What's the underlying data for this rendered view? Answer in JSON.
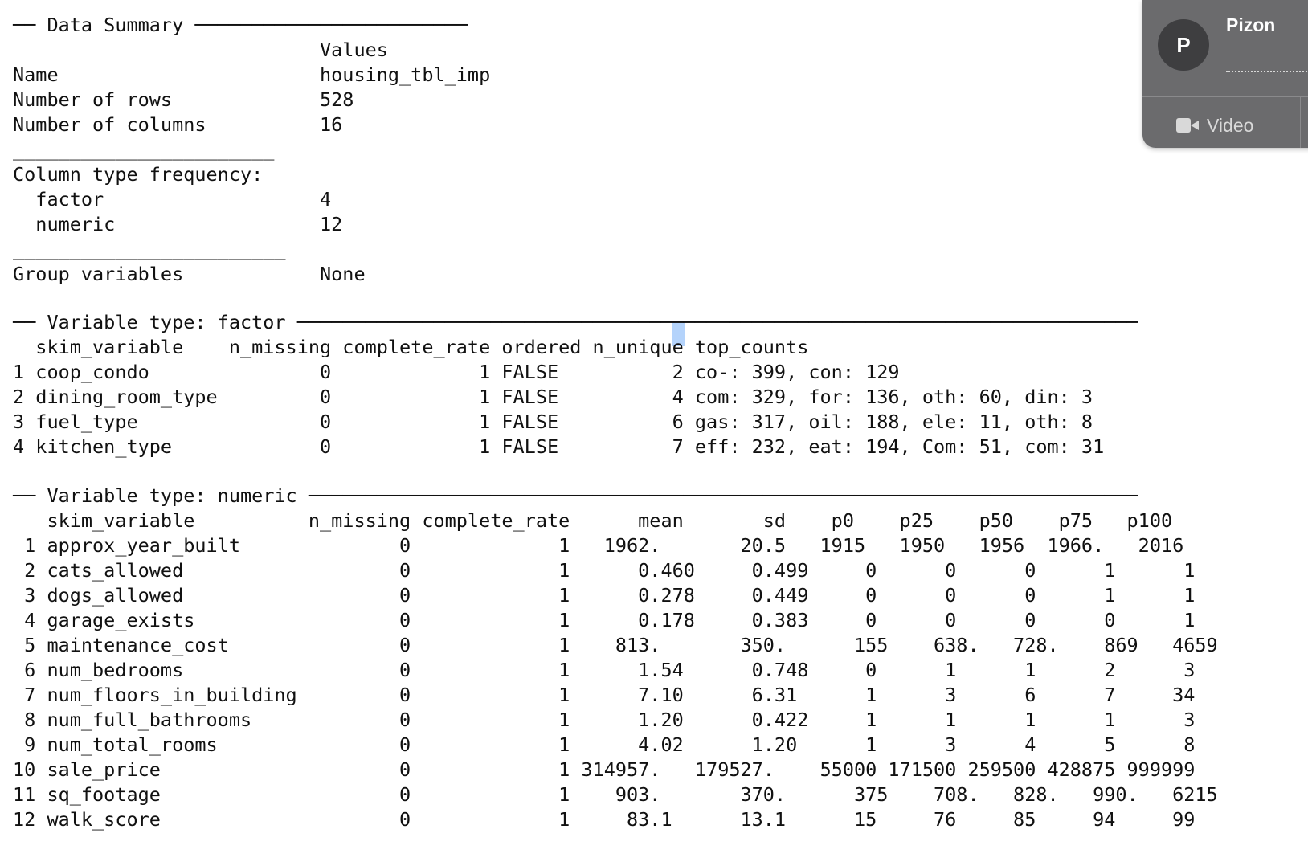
{
  "console": {
    "lines": [
      "── Data Summary ────────────────────────",
      "                           Values",
      "Name                       housing_tbl_imp",
      "Number of rows             528",
      "Number of columns          16",
      "_______________________",
      "Column type frequency:",
      "  factor                   4",
      "  numeric                  12",
      "________________________",
      "Group variables            None",
      "",
      "── Variable type: factor ──────────────────────────────────────────────────────────────────────────",
      "  skim_variable    n_missing complete_rate ordered n_unique top_counts",
      "1 coop_condo               0             1 FALSE          2 co-: 399, con: 129",
      "2 dining_room_type         0             1 FALSE          4 com: 329, for: 136, oth: 60, din: 3",
      "3 fuel_type                0             1 FALSE          6 gas: 317, oil: 188, ele: 11, oth: 8",
      "4 kitchen_type             0             1 FALSE          7 eff: 232, eat: 194, Com: 51, com: 31",
      "",
      "── Variable type: numeric ─────────────────────────────────────────────────────────────────────────",
      "   skim_variable          n_missing complete_rate      mean       sd    p0    p25    p50    p75   p100",
      " 1 approx_year_built              0             1   1962.       20.5   1915   1950   1956  1966.   2016",
      " 2 cats_allowed                   0             1      0.460     0.499     0      0      0      1      1",
      " 3 dogs_allowed                   0             1      0.278     0.449     0      0      0      1      1",
      " 4 garage_exists                  0             1      0.178     0.383     0      0      0      0      1",
      " 5 maintenance_cost               0             1    813.       350.      155    638.   728.    869   4659",
      " 6 num_bedrooms                   0             1      1.54      0.748     0      1      1      2      3",
      " 7 num_floors_in_building         0             1      7.10      6.31      1      3      6      7     34",
      " 8 num_full_bathrooms             0             1      1.20      0.422     1      1      1      1      3",
      " 9 num_total_rooms                0             1      4.02      1.20      1      3      4      5      8",
      "10 sale_price                     0             1 314957.   179527.    55000 171500 259500 428875 999999",
      "11 sq_footage                     0             1    903.       370.      375    708.   828.   990.   6215",
      "12 walk_score                     0             1     83.1      13.1      15     76     85     94     99"
    ]
  },
  "meeting_widget": {
    "avatar_initial": "P",
    "participant_name": "Pizon",
    "video_label": "Video",
    "video_icon": "video-camera-icon"
  }
}
